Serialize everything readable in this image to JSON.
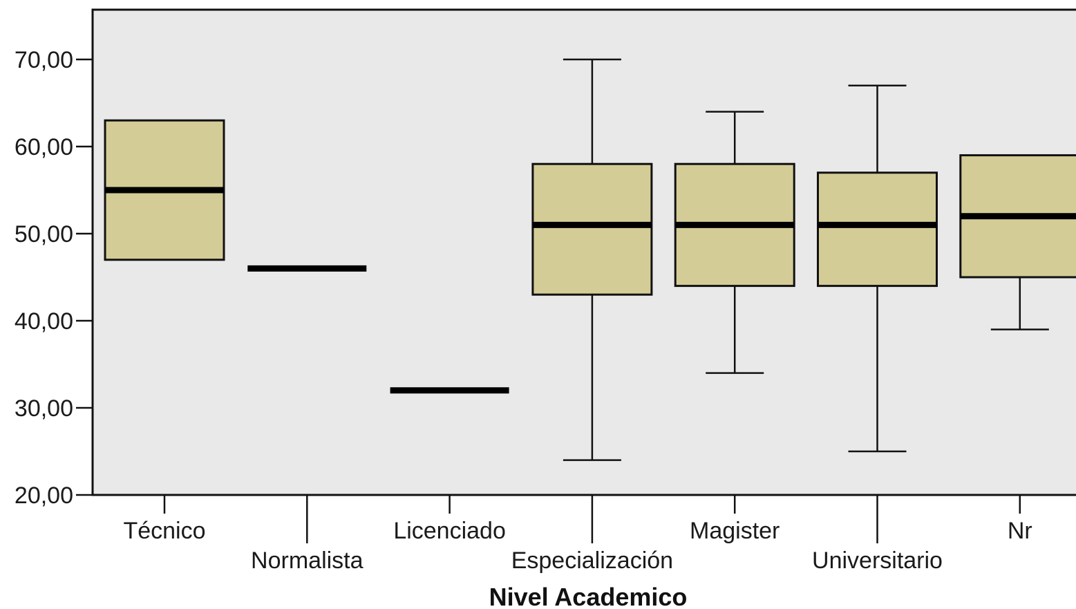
{
  "chart_data": {
    "type": "boxplot",
    "title": "",
    "xlabel": "Nivel Academico",
    "ylabel": "",
    "ylim": [
      20,
      75
    ],
    "yticks": [
      20,
      30,
      40,
      50,
      60,
      70
    ],
    "ytick_labels": [
      "20,00",
      "30,00",
      "40,00",
      "50,00",
      "60,00",
      "70,00"
    ],
    "grid": false,
    "box_color": "#d4cc96",
    "plot_background": "#e9e9e9",
    "categories": [
      "Técnico",
      "Normalista",
      "Licenciado",
      "Especialización",
      "Magister",
      "Universitario",
      "Nr"
    ],
    "boxes": [
      {
        "category": "Técnico",
        "min": null,
        "q1": 47,
        "median": 55,
        "q3": 63,
        "max": null
      },
      {
        "category": "Normalista",
        "min": null,
        "q1": 46,
        "median": 46,
        "q3": 46,
        "max": null
      },
      {
        "category": "Licenciado",
        "min": null,
        "q1": 32,
        "median": 32,
        "q3": 32,
        "max": null
      },
      {
        "category": "Especialización",
        "min": 24,
        "q1": 43,
        "median": 51,
        "q3": 58,
        "max": 70
      },
      {
        "category": "Magister",
        "min": 34,
        "q1": 44,
        "median": 51,
        "q3": 58,
        "max": 64
      },
      {
        "category": "Universitario",
        "min": 25,
        "q1": 44,
        "median": 51,
        "q3": 57,
        "max": 67
      },
      {
        "category": "Nr",
        "min": 39,
        "q1": 45,
        "median": 52,
        "q3": 59,
        "max": null
      }
    ]
  }
}
